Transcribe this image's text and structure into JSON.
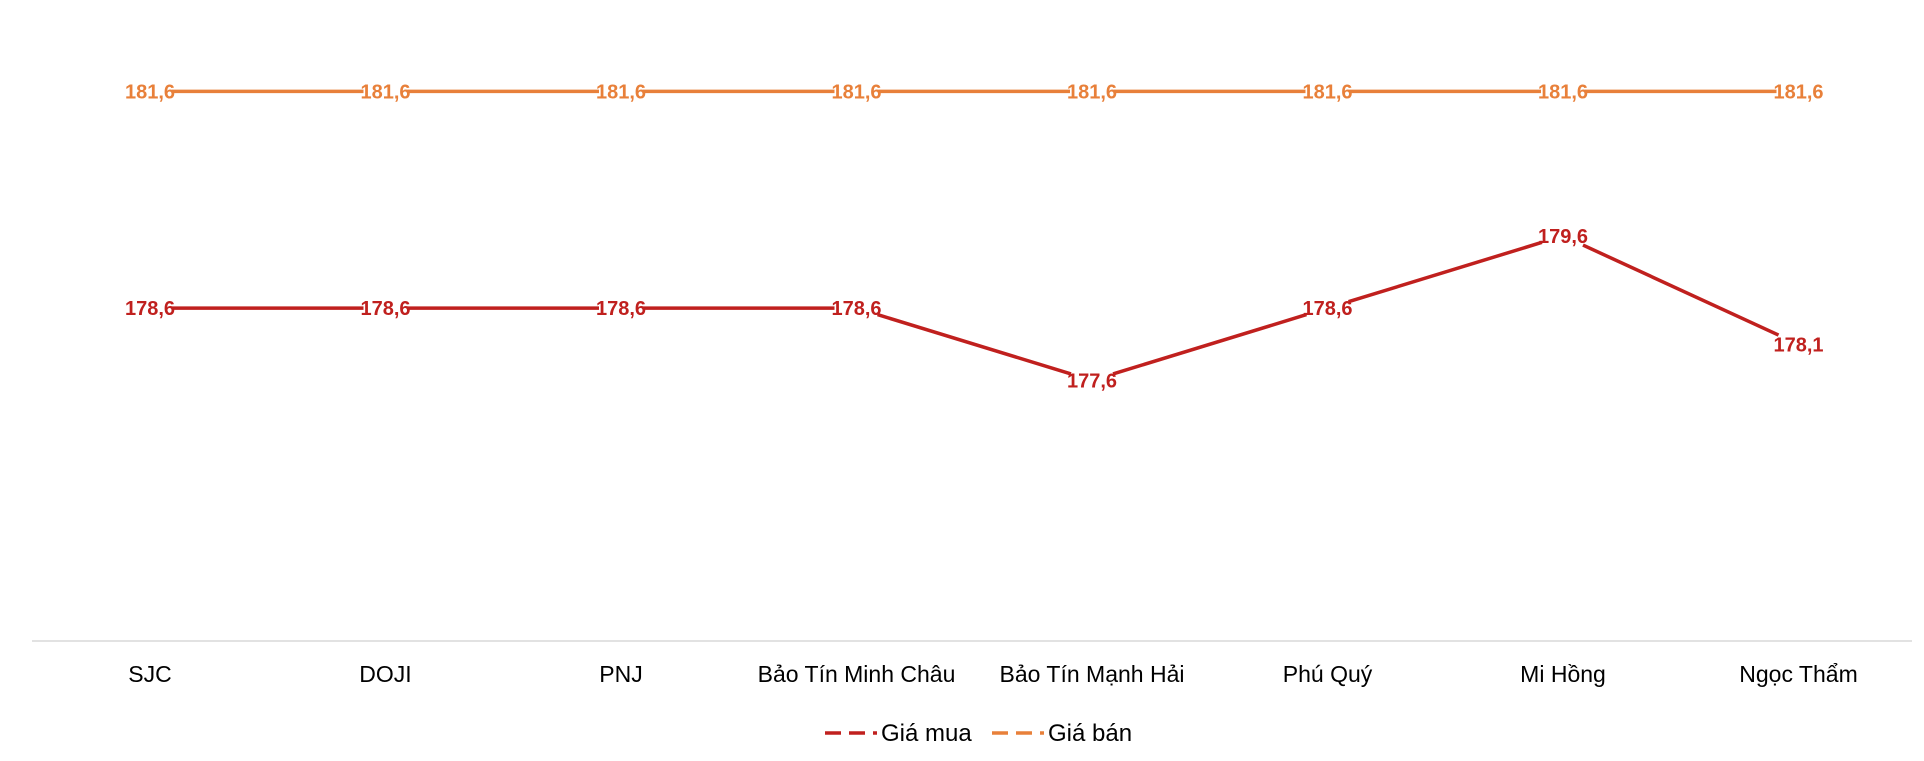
{
  "chart_data": {
    "type": "line",
    "categories": [
      "SJC",
      "DOJI",
      "PNJ",
      "Bảo Tín Minh Châu",
      "Bảo Tín Mạnh Hải",
      "Phú Quý",
      "Mi Hồng",
      "Ngọc Thẩm"
    ],
    "series": [
      {
        "name": "Giá mua",
        "color": "#C0201E",
        "values": [
          178.6,
          178.6,
          178.6,
          178.6,
          177.6,
          178.6,
          179.6,
          178.1
        ],
        "labels": [
          "178,6",
          "178,6",
          "178,6",
          "178,6",
          "177,6",
          "178,6",
          "179,6",
          "178,1"
        ]
      },
      {
        "name": "Giá bán",
        "color": "#E8803A",
        "values": [
          181.6,
          181.6,
          181.6,
          181.6,
          181.6,
          181.6,
          181.6,
          181.6
        ],
        "labels": [
          "181,6",
          "181,6",
          "181,6",
          "181,6",
          "181,6",
          "181,6",
          "181,6",
          "181,6"
        ]
      }
    ],
    "title": "",
    "xlabel": "",
    "ylabel": "",
    "ylim": [
      174.0,
      182.0
    ],
    "grid": false,
    "legend_position": "bottom"
  }
}
